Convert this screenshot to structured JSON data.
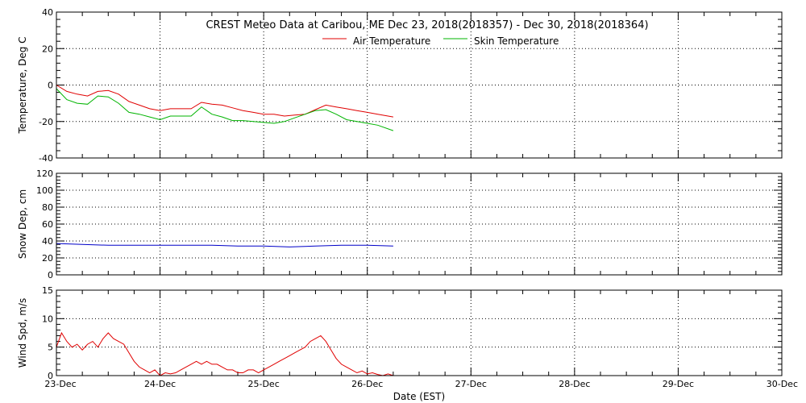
{
  "title": "CREST Meteo Data at Caribou, ME   Dec 23, 2018(2018357) - Dec 30, 2018(2018364)",
  "xlabel": "Date (EST)",
  "x_ticks": [
    "23-Dec",
    "24-Dec",
    "25-Dec",
    "26-Dec",
    "27-Dec",
    "28-Dec",
    "29-Dec",
    "30-Dec"
  ],
  "colors": {
    "air": "#e00000",
    "skin": "#00b400",
    "snow": "#0000c8",
    "wind": "#e00000"
  },
  "chart_data": [
    {
      "type": "line",
      "ylabel": "Temperature, Deg C",
      "xlim": [
        0,
        7
      ],
      "ylim": [
        -40,
        40
      ],
      "yticks": [
        -40,
        -20,
        0,
        20,
        40
      ],
      "grid": true,
      "legend": "top-center",
      "series": [
        {
          "name": "Air Temperature",
          "x": [
            0.0,
            0.1,
            0.2,
            0.3,
            0.4,
            0.5,
            0.6,
            0.7,
            0.8,
            0.9,
            1.0,
            1.1,
            1.2,
            1.3,
            1.4,
            1.5,
            1.6,
            1.7,
            1.8,
            1.9,
            2.0,
            2.1,
            2.2,
            2.3,
            2.4,
            2.5,
            2.6,
            2.7,
            2.8,
            2.9,
            3.0,
            3.1,
            3.25
          ],
          "y": [
            0.0,
            -3.5,
            -5.0,
            -6.0,
            -3.5,
            -3.0,
            -5.0,
            -9.0,
            -11.0,
            -13.0,
            -14.0,
            -13.0,
            -13.0,
            -13.0,
            -9.5,
            -10.5,
            -11.0,
            -12.5,
            -14.0,
            -15.0,
            -16.0,
            -16.0,
            -17.0,
            -16.5,
            -16.0,
            -13.5,
            -11.0,
            -12.0,
            -13.0,
            -14.0,
            -15.0,
            -16.0,
            -17.5
          ]
        },
        {
          "name": "Skin Temperature",
          "x": [
            0.0,
            0.1,
            0.2,
            0.3,
            0.4,
            0.5,
            0.6,
            0.7,
            0.8,
            0.9,
            1.0,
            1.1,
            1.2,
            1.3,
            1.4,
            1.5,
            1.6,
            1.7,
            1.8,
            1.9,
            2.0,
            2.1,
            2.2,
            2.3,
            2.4,
            2.5,
            2.6,
            2.7,
            2.8,
            2.9,
            3.0,
            3.1,
            3.25
          ],
          "y": [
            -2.0,
            -8.0,
            -10.0,
            -10.5,
            -6.0,
            -6.5,
            -10.0,
            -15.0,
            -16.0,
            -17.5,
            -19.0,
            -17.0,
            -17.0,
            -17.0,
            -12.0,
            -16.0,
            -17.5,
            -19.5,
            -19.5,
            -20.0,
            -20.5,
            -21.0,
            -20.0,
            -18.0,
            -16.0,
            -14.0,
            -13.5,
            -16.0,
            -19.0,
            -20.0,
            -21.0,
            -22.0,
            -25.0
          ]
        }
      ]
    },
    {
      "type": "line",
      "ylabel": "Snow Dep, cm",
      "xlim": [
        0,
        7
      ],
      "ylim": [
        0,
        120
      ],
      "yticks": [
        0,
        20,
        40,
        60,
        80,
        100,
        120
      ],
      "grid": true,
      "series": [
        {
          "x": [
            0.0,
            0.25,
            0.5,
            0.75,
            1.0,
            1.25,
            1.5,
            1.75,
            2.0,
            2.25,
            2.5,
            2.75,
            3.0,
            3.25
          ],
          "y": [
            37,
            36,
            35,
            35,
            35,
            35,
            35,
            34,
            34,
            33,
            34,
            35,
            35,
            34
          ]
        }
      ]
    },
    {
      "type": "line",
      "ylabel": "Wind Spd, m/s",
      "xlim": [
        0,
        7
      ],
      "ylim": [
        0,
        15
      ],
      "yticks": [
        0,
        5,
        10,
        15
      ],
      "grid": true,
      "series": [
        {
          "x": [
            0.0,
            0.05,
            0.1,
            0.15,
            0.2,
            0.25,
            0.3,
            0.35,
            0.4,
            0.45,
            0.5,
            0.55,
            0.6,
            0.65,
            0.7,
            0.75,
            0.8,
            0.85,
            0.9,
            0.95,
            1.0,
            1.05,
            1.1,
            1.15,
            1.2,
            1.25,
            1.3,
            1.35,
            1.4,
            1.45,
            1.5,
            1.55,
            1.6,
            1.65,
            1.7,
            1.75,
            1.8,
            1.85,
            1.9,
            1.95,
            2.0,
            2.05,
            2.1,
            2.15,
            2.2,
            2.25,
            2.3,
            2.35,
            2.4,
            2.45,
            2.5,
            2.55,
            2.6,
            2.65,
            2.7,
            2.75,
            2.8,
            2.85,
            2.9,
            2.95,
            3.0,
            3.05,
            3.1,
            3.15,
            3.2,
            3.25
          ],
          "y": [
            5.0,
            7.5,
            6.0,
            5.0,
            5.5,
            4.5,
            5.5,
            6.0,
            5.0,
            6.5,
            7.5,
            6.5,
            6.0,
            5.5,
            4.0,
            2.5,
            1.5,
            1.0,
            0.5,
            1.0,
            0.0,
            0.5,
            0.3,
            0.5,
            1.0,
            1.5,
            2.0,
            2.5,
            2.0,
            2.5,
            2.0,
            2.0,
            1.5,
            1.0,
            1.0,
            0.5,
            0.5,
            1.0,
            1.0,
            0.5,
            1.0,
            1.5,
            2.0,
            2.5,
            3.0,
            3.5,
            4.0,
            4.5,
            5.0,
            6.0,
            6.5,
            7.0,
            6.0,
            4.5,
            3.0,
            2.0,
            1.5,
            1.0,
            0.5,
            0.8,
            0.3,
            0.5,
            0.2,
            0.0,
            0.3,
            0.0
          ]
        }
      ]
    }
  ]
}
